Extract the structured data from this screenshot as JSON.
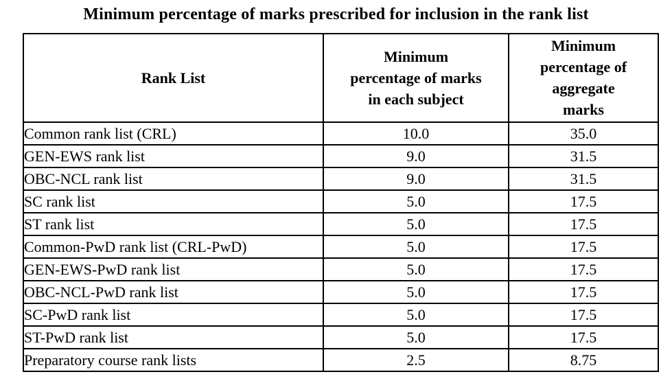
{
  "title": "Minimum percentage of marks prescribed for inclusion in the rank list",
  "table": {
    "header": {
      "col1": {
        "lines": [
          "Rank List"
        ]
      },
      "col2": {
        "lines": [
          "Minimum",
          "percentage of marks",
          "in each subject"
        ]
      },
      "col3": {
        "lines": [
          "Minimum",
          "percentage of",
          "aggregate",
          "marks"
        ]
      }
    },
    "rows": [
      [
        "Common rank list (CRL)",
        "10.0",
        "35.0"
      ],
      [
        "GEN-EWS rank list",
        "9.0",
        "31.5"
      ],
      [
        "OBC-NCL rank list",
        "9.0",
        "31.5"
      ],
      [
        "SC rank list",
        "5.0",
        "17.5"
      ],
      [
        "ST rank list",
        "5.0",
        "17.5"
      ],
      [
        "Common-PwD rank list (CRL-PwD)",
        "5.0",
        "17.5"
      ],
      [
        "GEN-EWS-PwD rank list",
        "5.0",
        "17.5"
      ],
      [
        "OBC-NCL-PwD rank list",
        "5.0",
        "17.5"
      ],
      [
        "SC-PwD rank list",
        "5.0",
        "17.5"
      ],
      [
        "ST-PwD rank list",
        "5.0",
        "17.5"
      ],
      [
        "Preparatory course rank lists",
        "2.5",
        "8.75"
      ]
    ]
  },
  "colors": {
    "text": "#000000",
    "border": "#000000",
    "background": "#ffffff"
  }
}
